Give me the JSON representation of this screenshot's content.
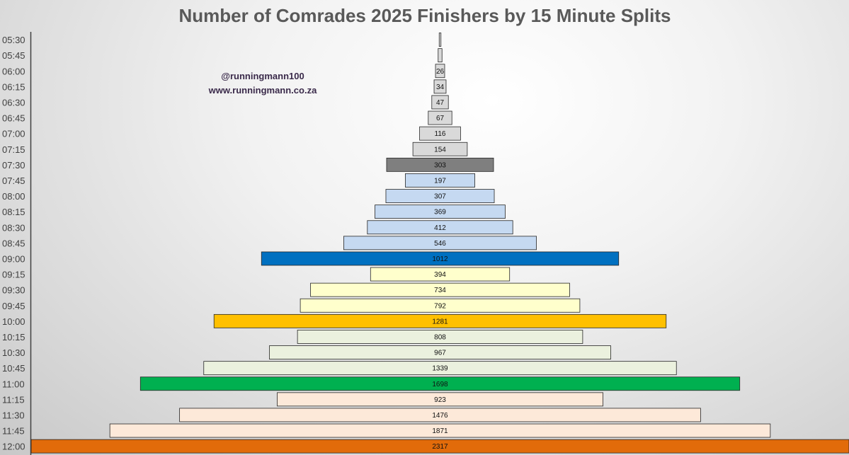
{
  "chart_data": {
    "type": "bar",
    "orientation": "horizontal-centered",
    "title": "Number of Comrades 2025 Finishers by 15 Minute Splits",
    "annotations": [
      "@runningmann100",
      "www.runningmann.co.za"
    ],
    "categories": [
      "05:30",
      "05:45",
      "06:00",
      "06:15",
      "06:30",
      "06:45",
      "07:00",
      "07:15",
      "07:30",
      "07:45",
      "08:00",
      "08:15",
      "08:30",
      "08:45",
      "09:00",
      "09:15",
      "09:30",
      "09:45",
      "10:00",
      "10:15",
      "10:30",
      "10:45",
      "11:00",
      "11:15",
      "11:30",
      "11:45",
      "12:00"
    ],
    "values": [
      2,
      11,
      26,
      34,
      47,
      67,
      116,
      154,
      303,
      197,
      307,
      369,
      412,
      546,
      1012,
      394,
      734,
      792,
      1281,
      808,
      967,
      1339,
      1698,
      923,
      1476,
      1871,
      2317
    ],
    "data_labels": [
      "",
      "",
      "26",
      "34",
      "47",
      "67",
      "116",
      "154",
      "303",
      "197",
      "307",
      "369",
      "412",
      "546",
      "1012",
      "394",
      "734",
      "792",
      "1281",
      "808",
      "967",
      "1339",
      "1698",
      "923",
      "1476",
      "1871",
      "2317"
    ],
    "colors": [
      "#d9d9d9",
      "#d9d9d9",
      "#d9d9d9",
      "#d9d9d9",
      "#d9d9d9",
      "#d9d9d9",
      "#d9d9d9",
      "#d9d9d9",
      "#7f7f7f",
      "#c5d9f1",
      "#c5d9f1",
      "#c5d9f1",
      "#c5d9f1",
      "#c5d9f1",
      "#0070c0",
      "#ffffcc",
      "#ffffcc",
      "#ffffcc",
      "#ffc000",
      "#ebf1de",
      "#ebf1de",
      "#ebf1de",
      "#00b050",
      "#fde9d9",
      "#fde9d9",
      "#fde9d9",
      "#e26b0a"
    ],
    "label_colors": [
      "#111111",
      "#111111",
      "#111111",
      "#111111",
      "#111111",
      "#111111",
      "#111111",
      "#111111",
      "#ffffff",
      "#111111",
      "#111111",
      "#111111",
      "#111111",
      "#111111",
      "#ffffff",
      "#111111",
      "#111111",
      "#111111",
      "#111111",
      "#111111",
      "#111111",
      "#111111",
      "#ffffff",
      "#111111",
      "#111111",
      "#111111",
      "#ffffff"
    ],
    "xlabel": "",
    "ylabel": "",
    "grid": false,
    "legend": "none"
  }
}
